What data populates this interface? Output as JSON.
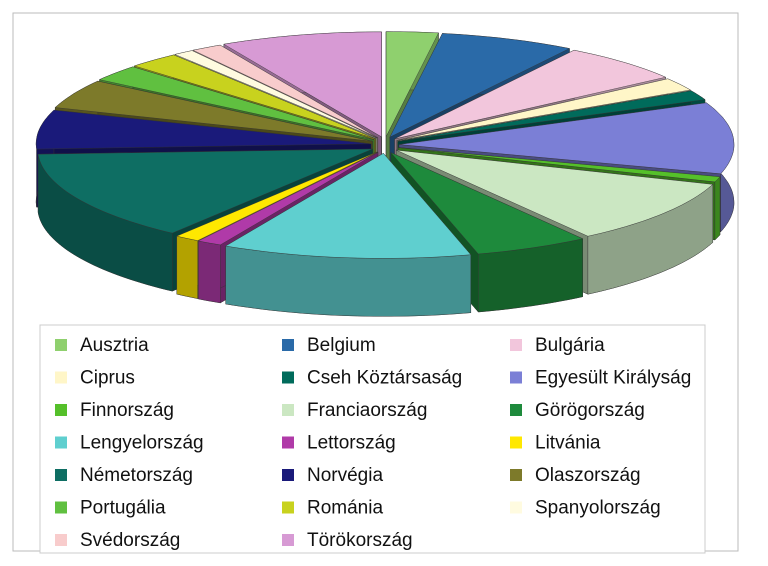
{
  "chart_data": {
    "type": "pie",
    "categories": [
      "Ausztria",
      "Belgium",
      "Bulgária",
      "Ciprus",
      "Cseh Köztársaság",
      "Egyesült Királyság",
      "Finnország",
      "Franciaország",
      "Görögország",
      "Lengyelország",
      "Lettország",
      "Litvánia",
      "Németország",
      "Norvégia",
      "Olaszország",
      "Portugália",
      "Románia",
      "Spanyolország",
      "Svédország",
      "Törökország"
    ],
    "values": [
      2.5,
      6.5,
      6,
      2,
      1.5,
      11,
      0.8,
      10,
      5.5,
      12,
      1.2,
      1.2,
      14,
      6,
      4.5,
      2.5,
      2.5,
      1,
      1.5,
      7.8
    ],
    "colors": [
      "#8fd06e",
      "#2a6aa8",
      "#f2c6dc",
      "#fff6c8",
      "#006b5b",
      "#7b7fd6",
      "#55c02a",
      "#cbe7c2",
      "#1e8a3c",
      "#5fcfcf",
      "#b03aa8",
      "#ffe800",
      "#0e6e63",
      "#1a1a7a",
      "#7d7a2a",
      "#60c040",
      "#c8d21e",
      "#fffbe0",
      "#f8cccc",
      "#d79ad4"
    ],
    "legend": "bottom"
  }
}
